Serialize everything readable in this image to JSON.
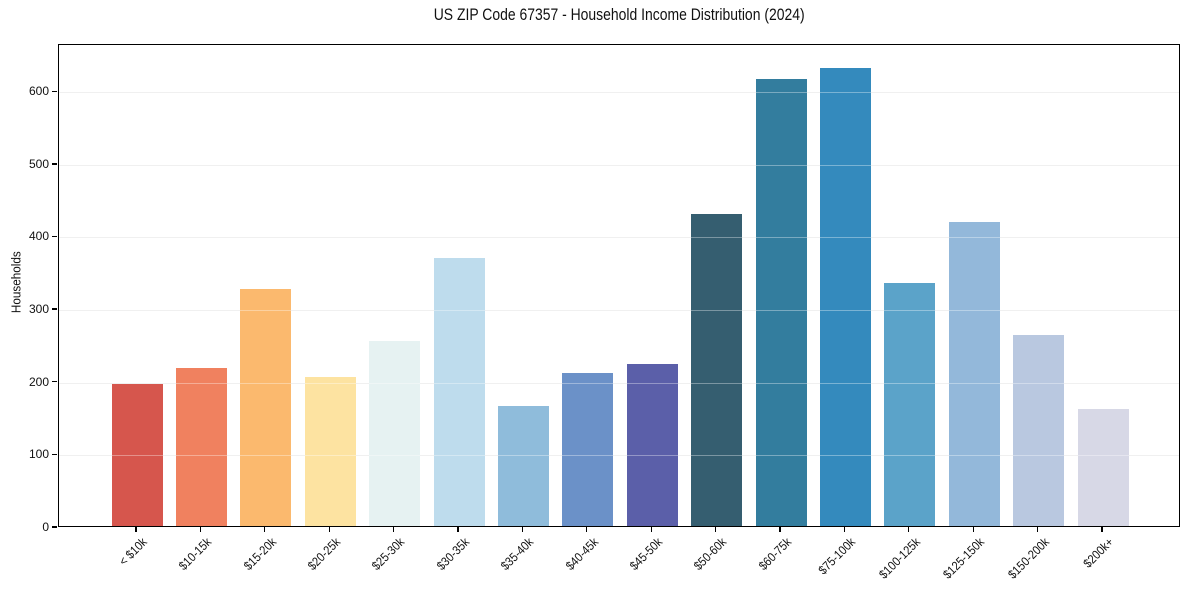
{
  "title": "US ZIP Code 67357 - Household Income Distribution (2024)",
  "chart_data": {
    "type": "bar",
    "title": "US ZIP Code 67357 - Household Income Distribution (2024)",
    "xlabel": "",
    "ylabel": "Households",
    "categories": [
      "< $10k",
      "$10-15k",
      "$15-20k",
      "$20-25k",
      "$25-30k",
      "$30-35k",
      "$35-40k",
      "$40-45k",
      "$45-50k",
      "$50-60k",
      "$60-75k",
      "$75-100k",
      "$100-125k",
      "$125-150k",
      "$150-200k",
      "$200k+"
    ],
    "values": [
      196,
      217,
      327,
      205,
      255,
      369,
      165,
      210,
      223,
      430,
      616,
      631,
      334,
      418,
      263,
      161
    ],
    "bar_colors": [
      "#d6564d",
      "#f0815f",
      "#fbb96e",
      "#fde3a1",
      "#e6f2f2",
      "#bedced",
      "#8fbcdb",
      "#6b91c8",
      "#5b5fa9",
      "#355e70",
      "#337d9e",
      "#348abd",
      "#5ba3c9",
      "#93b8da",
      "#b9c8e0",
      "#d7d8e6"
    ],
    "yticks": [
      0,
      100,
      200,
      300,
      400,
      500,
      600
    ],
    "ylim": [
      0,
      665
    ],
    "grid": "horizontal",
    "grid_color": "#e8e8e8",
    "grid_over_bars_color": "rgba(255,255,255,0.35)",
    "spine_color": "#000000",
    "background": "#ffffff",
    "legend": "none"
  }
}
